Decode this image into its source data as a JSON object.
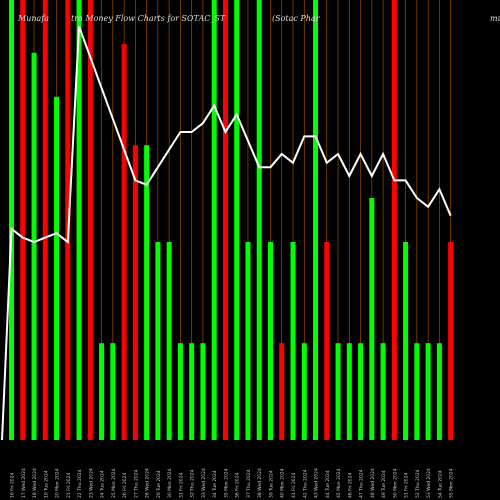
{
  "chart_data": {
    "type": "bar",
    "title": "MunafaSutra Money Flow Charts for SOTAC_ST",
    "subtitle": "(Sotac Phar",
    "title_right": "mu",
    "title_left": "Munafa",
    "title_mid": "tra Money Flow Charts for SOTAC_ST",
    "categories": [
      "16 Fri 2024",
      "17 Wed 2024",
      "18 Wed 2024",
      "19 Tue 2024",
      "20 Mon 2024",
      "21 Fri 2024",
      "22 Thu 2024",
      "23 Wed 2024",
      "24 Tue 2024",
      "25 Mon 2024",
      "26 Fri 2024",
      "27 Thu 2024",
      "28 Wed 2024",
      "29 Tue 2024",
      "30 Mon 2024",
      "31 Fri 2024",
      "32 Thu 2024",
      "33 Wed 2024",
      "34 Tue 2024",
      "35 Mon 2024",
      "36 Fri 2024",
      "37 Thu 2024",
      "38 Wed 2024",
      "39 Tue 2024",
      "40 Mon 2024",
      "41 Fri 2024",
      "42 Thu 2024",
      "43 Wed 2024",
      "44 Tue 2024",
      "45 Mon 2024",
      "46 Fri 2024",
      "47 Thu 2024",
      "48 Wed 2024",
      "49 Tue 2024",
      "50 Mon 2024",
      "51 Fri 2024",
      "52 Thu 2024",
      "53 Wed 2024",
      "54 Tue 2024",
      "55 Mon 2024"
    ],
    "bar_values": [
      100,
      100,
      88,
      100,
      78,
      100,
      100,
      100,
      22,
      22,
      90,
      67,
      67,
      45,
      45,
      22,
      22,
      22,
      100,
      100,
      100,
      45,
      100,
      45,
      22,
      45,
      22,
      100,
      45,
      22,
      22,
      22,
      55,
      22,
      100,
      45,
      22,
      22,
      22,
      45
    ],
    "bar_colors": [
      "green",
      "red",
      "green",
      "red",
      "green",
      "red",
      "green",
      "red",
      "green",
      "green",
      "red",
      "red",
      "green",
      "green",
      "green",
      "green",
      "green",
      "green",
      "green",
      "red",
      "green",
      "green",
      "green",
      "green",
      "red",
      "green",
      "green",
      "green",
      "red",
      "green",
      "green",
      "green",
      "green",
      "green",
      "red",
      "green",
      "green",
      "green",
      "green",
      "red"
    ],
    "line_values": [
      48,
      46,
      45,
      46,
      47,
      45,
      94,
      87,
      80,
      73,
      66,
      59,
      58,
      62,
      66,
      70,
      70,
      72,
      76,
      70,
      74,
      68,
      62,
      62,
      65,
      63,
      69,
      69,
      63,
      65,
      60,
      65,
      60,
      65,
      59,
      59,
      55,
      53,
      57,
      51
    ],
    "ylim": [
      0,
      100
    ],
    "colors": {
      "green": "#00ff00",
      "red": "#ff0000",
      "line": "#ffffff",
      "grid": "#b35900",
      "background": "#000000",
      "label": "#cccccc"
    },
    "grid": true,
    "legend": "none"
  }
}
